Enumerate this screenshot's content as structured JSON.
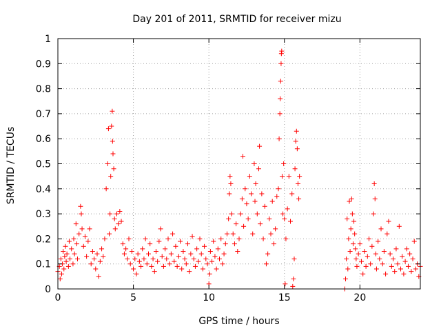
{
  "chart_data": {
    "type": "scatter",
    "title": "Day 201 of 2011, SRMTID for receiver mizu",
    "xlabel": "GPS time / hours",
    "ylabel": "SRMTID / TECUs",
    "xlim": [
      0,
      24
    ],
    "ylim": [
      0,
      1
    ],
    "x_ticks": [
      0,
      5,
      10,
      15,
      20
    ],
    "y_ticks": [
      0,
      0.1,
      0.2,
      0.3,
      0.4,
      0.5,
      0.6,
      0.7,
      0.8,
      0.9,
      1
    ],
    "y_tick_labels": [
      "0",
      "0.1",
      "0.2",
      "0.3",
      "0.4",
      "0.5",
      "0.6",
      "0.7",
      "0.8",
      "0.9",
      "1"
    ],
    "grid": true,
    "marker": "+",
    "color": "#ff0000",
    "series": [
      {
        "name": "SRMTID",
        "points": [
          [
            0.0,
            0.07
          ],
          [
            0.1,
            0.09
          ],
          [
            0.15,
            0.04
          ],
          [
            0.2,
            0.12
          ],
          [
            0.25,
            0.06
          ],
          [
            0.3,
            0.1
          ],
          [
            0.35,
            0.15
          ],
          [
            0.4,
            0.08
          ],
          [
            0.45,
            0.13
          ],
          [
            0.5,
            0.17
          ],
          [
            0.55,
            0.11
          ],
          [
            0.6,
            0.14
          ],
          [
            0.7,
            0.09
          ],
          [
            0.75,
            0.19
          ],
          [
            0.8,
            0.12
          ],
          [
            0.9,
            0.16
          ],
          [
            1.0,
            0.1
          ],
          [
            1.05,
            0.2
          ],
          [
            1.1,
            0.14
          ],
          [
            1.2,
            0.26
          ],
          [
            1.25,
            0.18
          ],
          [
            1.3,
            0.12
          ],
          [
            1.4,
            0.22
          ],
          [
            1.5,
            0.33
          ],
          [
            1.55,
            0.3
          ],
          [
            1.6,
            0.24
          ],
          [
            1.7,
            0.17
          ],
          [
            1.8,
            0.21
          ],
          [
            1.9,
            0.13
          ],
          [
            2.0,
            0.19
          ],
          [
            2.1,
            0.24
          ],
          [
            2.2,
            0.1
          ],
          [
            2.3,
            0.15
          ],
          [
            2.4,
            0.12
          ],
          [
            2.5,
            0.08
          ],
          [
            2.6,
            0.14
          ],
          [
            2.7,
            0.05
          ],
          [
            2.8,
            0.11
          ],
          [
            2.9,
            0.16
          ],
          [
            3.0,
            0.13
          ],
          [
            3.1,
            0.2
          ],
          [
            3.2,
            0.4
          ],
          [
            3.3,
            0.5
          ],
          [
            3.35,
            0.64
          ],
          [
            3.4,
            0.22
          ],
          [
            3.45,
            0.3
          ],
          [
            3.5,
            0.45
          ],
          [
            3.55,
            0.65
          ],
          [
            3.6,
            0.71
          ],
          [
            3.62,
            0.59
          ],
          [
            3.65,
            0.54
          ],
          [
            3.7,
            0.48
          ],
          [
            3.75,
            0.28
          ],
          [
            3.8,
            0.24
          ],
          [
            3.9,
            0.3
          ],
          [
            4.0,
            0.26
          ],
          [
            4.1,
            0.31
          ],
          [
            4.2,
            0.27
          ],
          [
            4.3,
            0.18
          ],
          [
            4.4,
            0.14
          ],
          [
            4.5,
            0.16
          ],
          [
            4.6,
            0.12
          ],
          [
            4.7,
            0.2
          ],
          [
            4.8,
            0.1
          ],
          [
            4.9,
            0.15
          ],
          [
            5.0,
            0.08
          ],
          [
            5.1,
            0.12
          ],
          [
            5.2,
            0.06
          ],
          [
            5.3,
            0.14
          ],
          [
            5.4,
            0.11
          ],
          [
            5.5,
            0.09
          ],
          [
            5.6,
            0.16
          ],
          [
            5.7,
            0.12
          ],
          [
            5.8,
            0.2
          ],
          [
            5.9,
            0.1
          ],
          [
            6.0,
            0.14
          ],
          [
            6.1,
            0.18
          ],
          [
            6.2,
            0.09
          ],
          [
            6.3,
            0.12
          ],
          [
            6.4,
            0.07
          ],
          [
            6.5,
            0.15
          ],
          [
            6.6,
            0.11
          ],
          [
            6.7,
            0.19
          ],
          [
            6.8,
            0.24
          ],
          [
            6.9,
            0.13
          ],
          [
            7.0,
            0.09
          ],
          [
            7.1,
            0.16
          ],
          [
            7.2,
            0.12
          ],
          [
            7.3,
            0.2
          ],
          [
            7.4,
            0.1
          ],
          [
            7.5,
            0.14
          ],
          [
            7.6,
            0.22
          ],
          [
            7.7,
            0.11
          ],
          [
            7.8,
            0.17
          ],
          [
            7.9,
            0.09
          ],
          [
            8.0,
            0.13
          ],
          [
            8.1,
            0.19
          ],
          [
            8.2,
            0.08
          ],
          [
            8.3,
            0.15
          ],
          [
            8.4,
            0.12
          ],
          [
            8.5,
            0.1
          ],
          [
            8.6,
            0.18
          ],
          [
            8.7,
            0.07
          ],
          [
            8.8,
            0.14
          ],
          [
            8.9,
            0.21
          ],
          [
            9.0,
            0.12
          ],
          [
            9.1,
            0.09
          ],
          [
            9.2,
            0.16
          ],
          [
            9.3,
            0.11
          ],
          [
            9.4,
            0.2
          ],
          [
            9.5,
            0.14
          ],
          [
            9.6,
            0.08
          ],
          [
            9.7,
            0.17
          ],
          [
            9.8,
            0.12
          ],
          [
            9.9,
            0.1
          ],
          [
            10.0,
            0.02
          ],
          [
            10.05,
            0.06
          ],
          [
            10.1,
            0.15
          ],
          [
            10.2,
            0.11
          ],
          [
            10.3,
            0.19
          ],
          [
            10.4,
            0.13
          ],
          [
            10.5,
            0.08
          ],
          [
            10.6,
            0.16
          ],
          [
            10.7,
            0.12
          ],
          [
            10.8,
            0.2
          ],
          [
            10.9,
            0.1
          ],
          [
            11.0,
            0.14
          ],
          [
            11.1,
            0.18
          ],
          [
            11.2,
            0.22
          ],
          [
            11.3,
            0.28
          ],
          [
            11.35,
            0.38
          ],
          [
            11.4,
            0.45
          ],
          [
            11.45,
            0.42
          ],
          [
            11.5,
            0.3
          ],
          [
            11.6,
            0.22
          ],
          [
            11.7,
            0.18
          ],
          [
            11.8,
            0.26
          ],
          [
            11.9,
            0.15
          ],
          [
            12.0,
            0.2
          ],
          [
            12.1,
            0.3
          ],
          [
            12.2,
            0.36
          ],
          [
            12.25,
            0.53
          ],
          [
            12.3,
            0.25
          ],
          [
            12.4,
            0.4
          ],
          [
            12.5,
            0.34
          ],
          [
            12.6,
            0.28
          ],
          [
            12.7,
            0.45
          ],
          [
            12.8,
            0.38
          ],
          [
            12.9,
            0.22
          ],
          [
            13.0,
            0.5
          ],
          [
            13.05,
            0.35
          ],
          [
            13.1,
            0.42
          ],
          [
            13.2,
            0.3
          ],
          [
            13.3,
            0.48
          ],
          [
            13.35,
            0.57
          ],
          [
            13.4,
            0.26
          ],
          [
            13.5,
            0.38
          ],
          [
            13.6,
            0.2
          ],
          [
            13.7,
            0.33
          ],
          [
            13.8,
            0.1
          ],
          [
            13.9,
            0.14
          ],
          [
            14.0,
            0.28
          ],
          [
            14.1,
            0.22
          ],
          [
            14.2,
            0.35
          ],
          [
            14.3,
            0.18
          ],
          [
            14.4,
            0.24
          ],
          [
            14.5,
            0.37
          ],
          [
            14.6,
            0.4
          ],
          [
            14.65,
            0.6
          ],
          [
            14.7,
            0.7
          ],
          [
            14.72,
            0.76
          ],
          [
            14.75,
            0.83
          ],
          [
            14.78,
            0.9
          ],
          [
            14.8,
            0.94
          ],
          [
            14.82,
            0.95
          ],
          [
            14.85,
            0.45
          ],
          [
            14.9,
            0.3
          ],
          [
            14.95,
            0.5
          ],
          [
            15.0,
            0.28
          ],
          [
            15.05,
            0.02
          ],
          [
            15.1,
            0.2
          ],
          [
            15.2,
            0.32
          ],
          [
            15.3,
            0.45
          ],
          [
            15.4,
            0.27
          ],
          [
            15.5,
            0.38
          ],
          [
            15.55,
            0.01
          ],
          [
            15.6,
            0.04
          ],
          [
            15.65,
            0.12
          ],
          [
            15.7,
            0.48
          ],
          [
            15.75,
            0.59
          ],
          [
            15.8,
            0.63
          ],
          [
            15.85,
            0.56
          ],
          [
            15.9,
            0.42
          ],
          [
            15.95,
            0.36
          ],
          [
            16.0,
            0.45
          ],
          [
            19.0,
            0.0
          ],
          [
            19.05,
            0.04
          ],
          [
            19.1,
            0.12
          ],
          [
            19.15,
            0.28
          ],
          [
            19.2,
            0.08
          ],
          [
            19.25,
            0.2
          ],
          [
            19.3,
            0.35
          ],
          [
            19.35,
            0.15
          ],
          [
            19.4,
            0.24
          ],
          [
            19.45,
            0.36
          ],
          [
            19.5,
            0.3
          ],
          [
            19.55,
            0.18
          ],
          [
            19.6,
            0.27
          ],
          [
            19.65,
            0.22
          ],
          [
            19.7,
            0.16
          ],
          [
            19.75,
            0.12
          ],
          [
            19.8,
            0.09
          ],
          [
            19.9,
            0.14
          ],
          [
            20.0,
            0.18
          ],
          [
            20.1,
            0.11
          ],
          [
            20.2,
            0.06
          ],
          [
            20.3,
            0.15
          ],
          [
            20.4,
            0.09
          ],
          [
            20.5,
            0.13
          ],
          [
            20.6,
            0.2
          ],
          [
            20.7,
            0.1
          ],
          [
            20.8,
            0.17
          ],
          [
            20.9,
            0.3
          ],
          [
            20.95,
            0.42
          ],
          [
            21.0,
            0.36
          ],
          [
            21.05,
            0.14
          ],
          [
            21.1,
            0.08
          ],
          [
            21.2,
            0.19
          ],
          [
            21.3,
            0.12
          ],
          [
            21.4,
            0.24
          ],
          [
            21.5,
            0.1
          ],
          [
            21.6,
            0.15
          ],
          [
            21.7,
            0.06
          ],
          [
            21.8,
            0.22
          ],
          [
            21.9,
            0.27
          ],
          [
            22.0,
            0.14
          ],
          [
            22.1,
            0.09
          ],
          [
            22.2,
            0.12
          ],
          [
            22.3,
            0.07
          ],
          [
            22.4,
            0.16
          ],
          [
            22.5,
            0.1
          ],
          [
            22.6,
            0.25
          ],
          [
            22.7,
            0.08
          ],
          [
            22.8,
            0.13
          ],
          [
            22.9,
            0.06
          ],
          [
            23.0,
            0.11
          ],
          [
            23.1,
            0.16
          ],
          [
            23.2,
            0.09
          ],
          [
            23.3,
            0.14
          ],
          [
            23.4,
            0.07
          ],
          [
            23.5,
            0.12
          ],
          [
            23.6,
            0.19
          ],
          [
            23.7,
            0.08
          ],
          [
            23.8,
            0.1
          ],
          [
            23.9,
            0.05
          ],
          [
            24.0,
            0.09
          ]
        ]
      }
    ]
  }
}
